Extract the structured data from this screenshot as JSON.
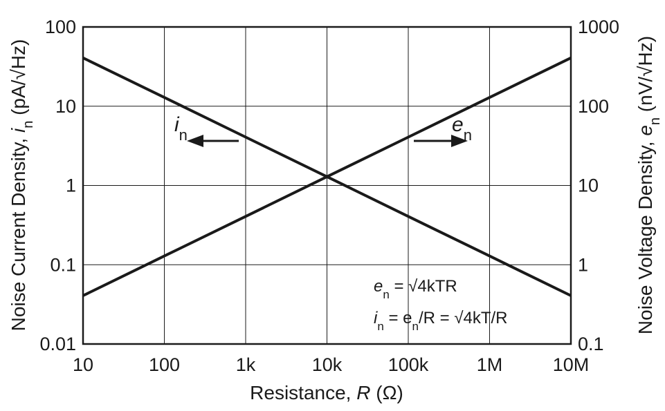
{
  "chart_data": {
    "type": "line",
    "xscale": "log",
    "yscale": "log",
    "xlim": [
      10,
      10000000
    ],
    "ylim_left": [
      0.01,
      100
    ],
    "ylim_right": [
      0.1,
      1000
    ],
    "grid": true,
    "xlabel_parts": [
      "Resistance, ",
      "R",
      " (Ω)"
    ],
    "ylabel_left_parts": [
      "Noise Current Density, ",
      "i",
      "n",
      " (pA/√Hz)"
    ],
    "ylabel_right_parts": [
      "Noise Voltage Density, ",
      "e",
      "n",
      " (nV/√Hz)"
    ],
    "x_ticks": [
      {
        "value": 10,
        "label": "10"
      },
      {
        "value": 100,
        "label": "100"
      },
      {
        "value": 1000,
        "label": "1k"
      },
      {
        "value": 10000,
        "label": "10k"
      },
      {
        "value": 100000,
        "label": "100k"
      },
      {
        "value": 1000000,
        "label": "1M"
      },
      {
        "value": 10000000,
        "label": "10M"
      }
    ],
    "y_ticks_left": [
      {
        "value": 0.01,
        "label": "0.01"
      },
      {
        "value": 0.1,
        "label": "0.1"
      },
      {
        "value": 1,
        "label": "1"
      },
      {
        "value": 10,
        "label": "10"
      },
      {
        "value": 100,
        "label": "100"
      }
    ],
    "y_ticks_right": [
      {
        "value": 0.1,
        "label": "0.1"
      },
      {
        "value": 1,
        "label": "1"
      },
      {
        "value": 10,
        "label": "10"
      },
      {
        "value": 100,
        "label": "100"
      },
      {
        "value": 1000,
        "label": "1000"
      }
    ],
    "series": [
      {
        "key": "in",
        "axis": "left",
        "x": [
          10,
          100,
          1000,
          10000,
          100000,
          1000000,
          10000000
        ],
        "y": [
          40.7,
          12.9,
          4.07,
          1.29,
          0.407,
          0.129,
          0.0407
        ]
      },
      {
        "key": "en",
        "axis": "right",
        "x": [
          10,
          100,
          1000,
          10000,
          100000,
          1000000,
          10000000
        ],
        "y": [
          0.407,
          1.29,
          4.07,
          12.9,
          40.7,
          129,
          407
        ]
      }
    ],
    "annotations": {
      "in_label": {
        "base": "i",
        "sub": "n"
      },
      "en_label": {
        "base": "e",
        "sub": "n"
      },
      "equation1": {
        "lhs_base": "e",
        "lhs_sub": "n",
        "rhs": " = √4kTR"
      },
      "equation2": {
        "lhs_base": "i",
        "lhs_sub": "n",
        "mid_base": " = e",
        "mid_sub": "n",
        "rhs": "/R = √4kT/R"
      }
    }
  }
}
